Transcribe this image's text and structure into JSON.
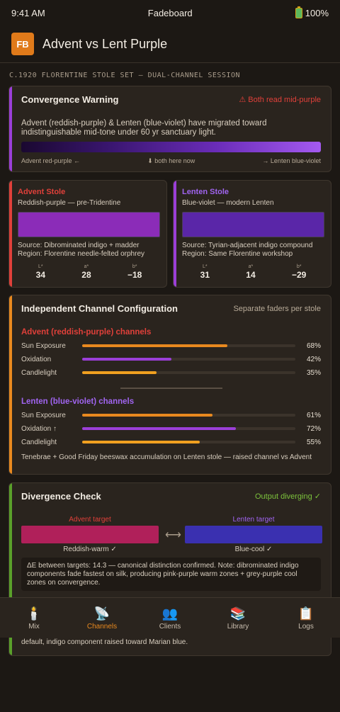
{
  "status_bar": {
    "time": "9:41 AM",
    "carrier": "Fadeboard",
    "battery": "100%"
  },
  "header": {
    "logo": "FB",
    "title": "Advent vs Lent Purple"
  },
  "session_label": "C.1920 FLORENTINE STOLE SET — DUAL-CHANNEL SESSION",
  "warning": {
    "title": "Convergence Warning",
    "badge": "⚠ Both read mid-purple",
    "text": "Advent (reddish-purple) & Lenten (blue-violet) have migrated toward indistinguishable mid-tone under 60 yr sanctuary light.",
    "legend_left": "Advent red-purple ←",
    "legend_mid": "⬇ both here now",
    "legend_right": "→ Lenten blue-violet"
  },
  "advent_stole": {
    "title": "Advent Stole",
    "subtitle": "Reddish-purple — pre-Tridentine",
    "swatch_color": "#8b2cb8",
    "source": "Source: Dibrominated indigo + madder",
    "region": "Region: Florentine needle-felted orphrey",
    "lab": [
      {
        "key": "L*",
        "value": "34"
      },
      {
        "key": "a*",
        "value": "28"
      },
      {
        "key": "b*",
        "value": "−18"
      }
    ]
  },
  "lenten_stole": {
    "title": "Lenten Stole",
    "subtitle": "Blue-violet — modern Lenten",
    "swatch_color": "#5a26a8",
    "source": "Source: Tyrian-adjacent indigo compound",
    "region": "Region: Same Florentine workshop",
    "lab": [
      {
        "key": "L*",
        "value": "31"
      },
      {
        "key": "a*",
        "value": "14"
      },
      {
        "key": "b*",
        "value": "−29"
      }
    ]
  },
  "config": {
    "title": "Independent Channel Configuration",
    "badge": "Separate faders per stole",
    "advent_group": {
      "title": "Advent (reddish-purple) channels",
      "sliders": [
        {
          "label": "Sun Exposure",
          "value": "68%",
          "level": 0.68,
          "color": "#e8891f"
        },
        {
          "label": "Oxidation",
          "value": "42%",
          "level": 0.42,
          "color": "#9b3fd8"
        },
        {
          "label": "Candlelight",
          "value": "35%",
          "level": 0.35,
          "color": "#f0a020"
        }
      ]
    },
    "lenten_group": {
      "title": "Lenten (blue-violet) channels",
      "sliders": [
        {
          "label": "Sun Exposure",
          "value": "61%",
          "level": 0.61,
          "color": "#e8891f"
        },
        {
          "label": "Oxidation ↑",
          "value": "72%",
          "level": 0.72,
          "color": "#9b3fd8"
        },
        {
          "label": "Candlelight",
          "value": "55%",
          "level": 0.55,
          "color": "#f0a020"
        }
      ]
    },
    "note": "Tenebrae + Good Friday beeswax accumulation on Lenten stole — raised channel vs Advent"
  },
  "divergence": {
    "title": "Divergence Check",
    "badge": "Output diverging ✓",
    "advent_target_label": "Advent target",
    "advent_target_color": "#b0205a",
    "advent_tag": "Reddish-warm ✓",
    "lenten_target_label": "Lenten target",
    "lenten_target_color": "#3a30b0",
    "lenten_tag": "Blue-cool ✓",
    "delta": "ΔE between targets: 14.3 — canonical distinction confirmed. Note: dibrominated indigo components fade fastest on silk, producing pink-purple warm zones + grey-purple cool zones on convergence.",
    "hidden_note": "range documented. Sarum Advent edge case: warmth fader reduced below post-Tridentine default, indigo component raised toward Marian blue."
  },
  "nav": [
    {
      "icon": "🕯️",
      "label": "Mix"
    },
    {
      "icon": "📡",
      "label": "Channels"
    },
    {
      "icon": "👥",
      "label": "Clients"
    },
    {
      "icon": "📚",
      "label": "Library"
    },
    {
      "icon": "📋",
      "label": "Logs"
    }
  ],
  "colors": {
    "accent_orange": "#e8891f",
    "advent_red": "#e0403a",
    "lenten_violet": "#9b5cf0",
    "success_green": "#7cc23c"
  }
}
